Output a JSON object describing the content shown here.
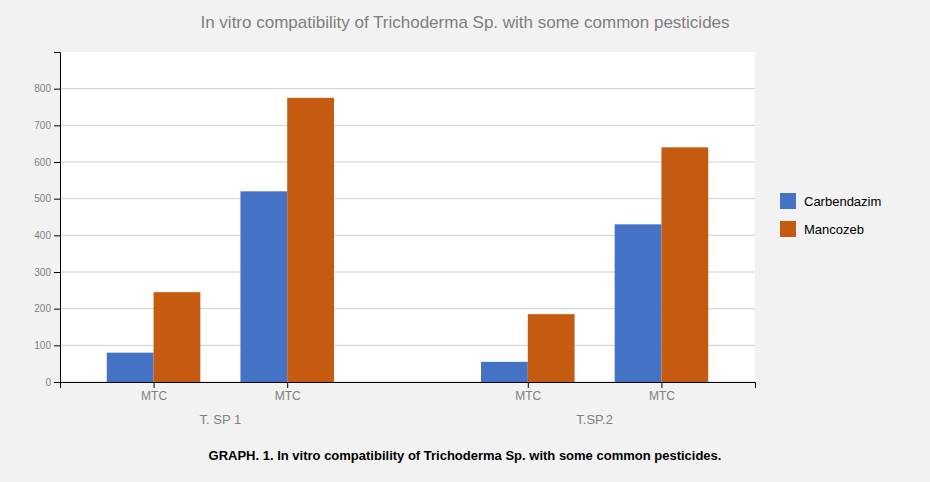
{
  "chart_data": {
    "type": "bar",
    "title": "In vitro compatibility of Trichoderma Sp. with some common pesticides",
    "categories": [
      "MTC",
      "MTC",
      "MTC",
      "MTC"
    ],
    "group_labels": [
      "T. SP 1",
      "T.SP.2"
    ],
    "series": [
      {
        "name": "Carbendazim",
        "color": "#4472C4",
        "values": [
          80,
          520,
          55,
          430
        ]
      },
      {
        "name": "Mancozeb",
        "color": "#C55A11",
        "values": [
          245,
          775,
          185,
          640
        ]
      }
    ],
    "ylim": [
      0,
      900
    ],
    "yticks": [
      0,
      100,
      200,
      300,
      400,
      500,
      600,
      700,
      800
    ],
    "grid": true,
    "legend": "right",
    "caption": "GRAPH. 1. In vitro compatibility of Trichoderma Sp. with some common pesticides."
  }
}
